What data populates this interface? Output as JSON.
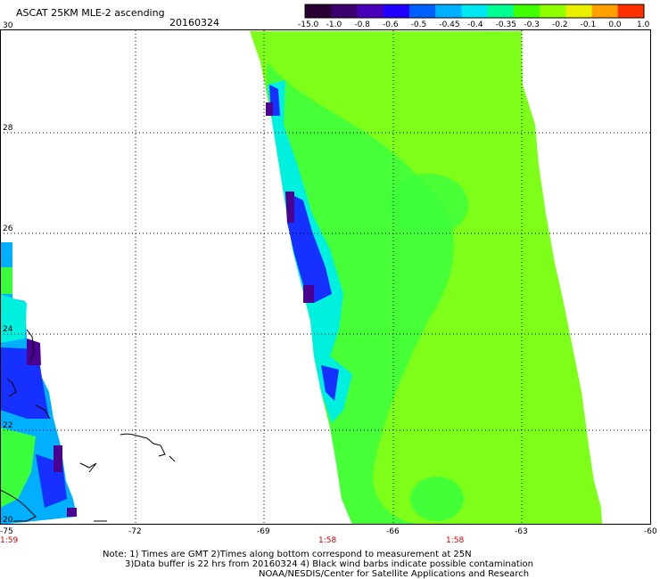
{
  "header": {
    "title": "ASCAT 25KM MLE-2 ascending",
    "date": "20160324"
  },
  "colorbar": {
    "labels": [
      "-15.0",
      "-1.0",
      "-0.8",
      "-0.6",
      "-0.5",
      "-0.45",
      "-0.4",
      "-0.35",
      "-0.3",
      "-0.2",
      "-0.1",
      "0.0",
      "1.0"
    ],
    "colors": [
      "#2a0033",
      "#3b006e",
      "#4a00b8",
      "#2200ff",
      "#0060ff",
      "#00b0ff",
      "#00e8f0",
      "#00ff90",
      "#40ff00",
      "#90ff00",
      "#e8f000",
      "#ffa000",
      "#ff3000"
    ]
  },
  "axes": {
    "lon_ticks": [
      "-75",
      "-72",
      "-69",
      "-66",
      "-63",
      "-60"
    ],
    "lat_ticks": [
      "30",
      "28",
      "26",
      "24",
      "22",
      "20"
    ]
  },
  "times": [
    "1:59",
    "1:58",
    "1:58"
  ],
  "notes": {
    "line1": "Note: 1) Times are GMT 2)Times along bottom correspond to measurement at 25N",
    "line2": "3)Data buffer is 22 hrs from 20160324 4) Black wind barbs indicate possible contamination",
    "line3": "NOAA/NESDIS/Center for Satellite Applications and Research"
  },
  "palette": {
    "swath_main": "#7dff1a",
    "swath_green": "#3cff3c",
    "edge_cyan": "#00f0e0",
    "edge_blue": "#1530ff",
    "edge_purple": "#4a0090"
  }
}
